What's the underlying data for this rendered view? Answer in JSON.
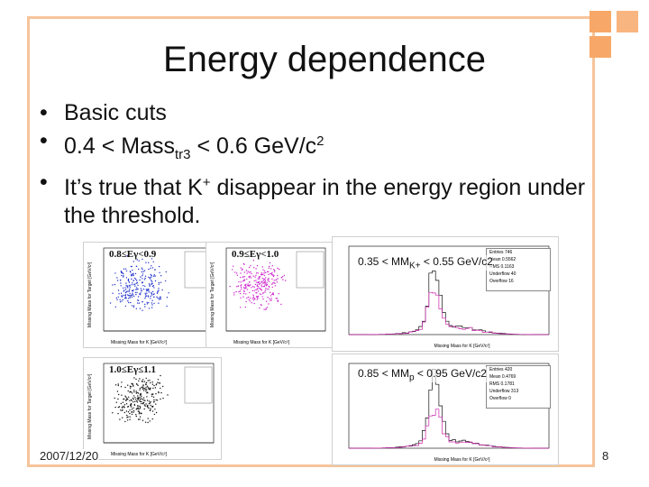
{
  "slide": {
    "title": "Energy dependence",
    "bullets": [
      {
        "pre": "Basic cuts"
      },
      {
        "pre": "0.4 < Mass",
        "sub": "tr3",
        "mid": " < 0.6 GeV/c",
        "sup": "2"
      },
      {
        "pre": "It’s true that K",
        "sup": "+",
        "post": " disappear in the energy region under the threshold."
      }
    ],
    "footer_date": "2007/12/20",
    "page_number": "8"
  },
  "colors": {
    "frame": "#f6c49a",
    "corner": "#f7a868"
  },
  "scatter_panels": [
    {
      "title": "0.8≤Eγ<0.9",
      "color": "#2233cc"
    },
    {
      "title": "0.9≤Eγ<1.0",
      "color": "#cc22cc"
    },
    {
      "title": "1.0≤Eγ≤1.1",
      "color": "#111111"
    }
  ],
  "histograms": [
    {
      "label": "0.35 < MM",
      "label_sub": "K+",
      "label_post": " < 0.55 GeV/c2",
      "stats": [
        "Entries 746",
        "Mean 0.5562",
        "RMS 0.1163",
        "Underflow 40",
        "Overflow 16"
      ]
    },
    {
      "label": "0.85 < MM",
      "label_sub": "p",
      "label_post": " < 0.95 GeV/c2",
      "stats": [
        "Entries 420",
        "Mean 0.4769",
        "RMS 0.1781",
        "Underflow 313",
        "Overflow 0"
      ]
    }
  ],
  "axis_text": {
    "scatter_x": "Missing Mass for K [GeV/c²]",
    "scatter_y": "Missing Mass for Target [GeV/c²]",
    "hist_x": "Missing Mass for K [GeV/c²]"
  }
}
